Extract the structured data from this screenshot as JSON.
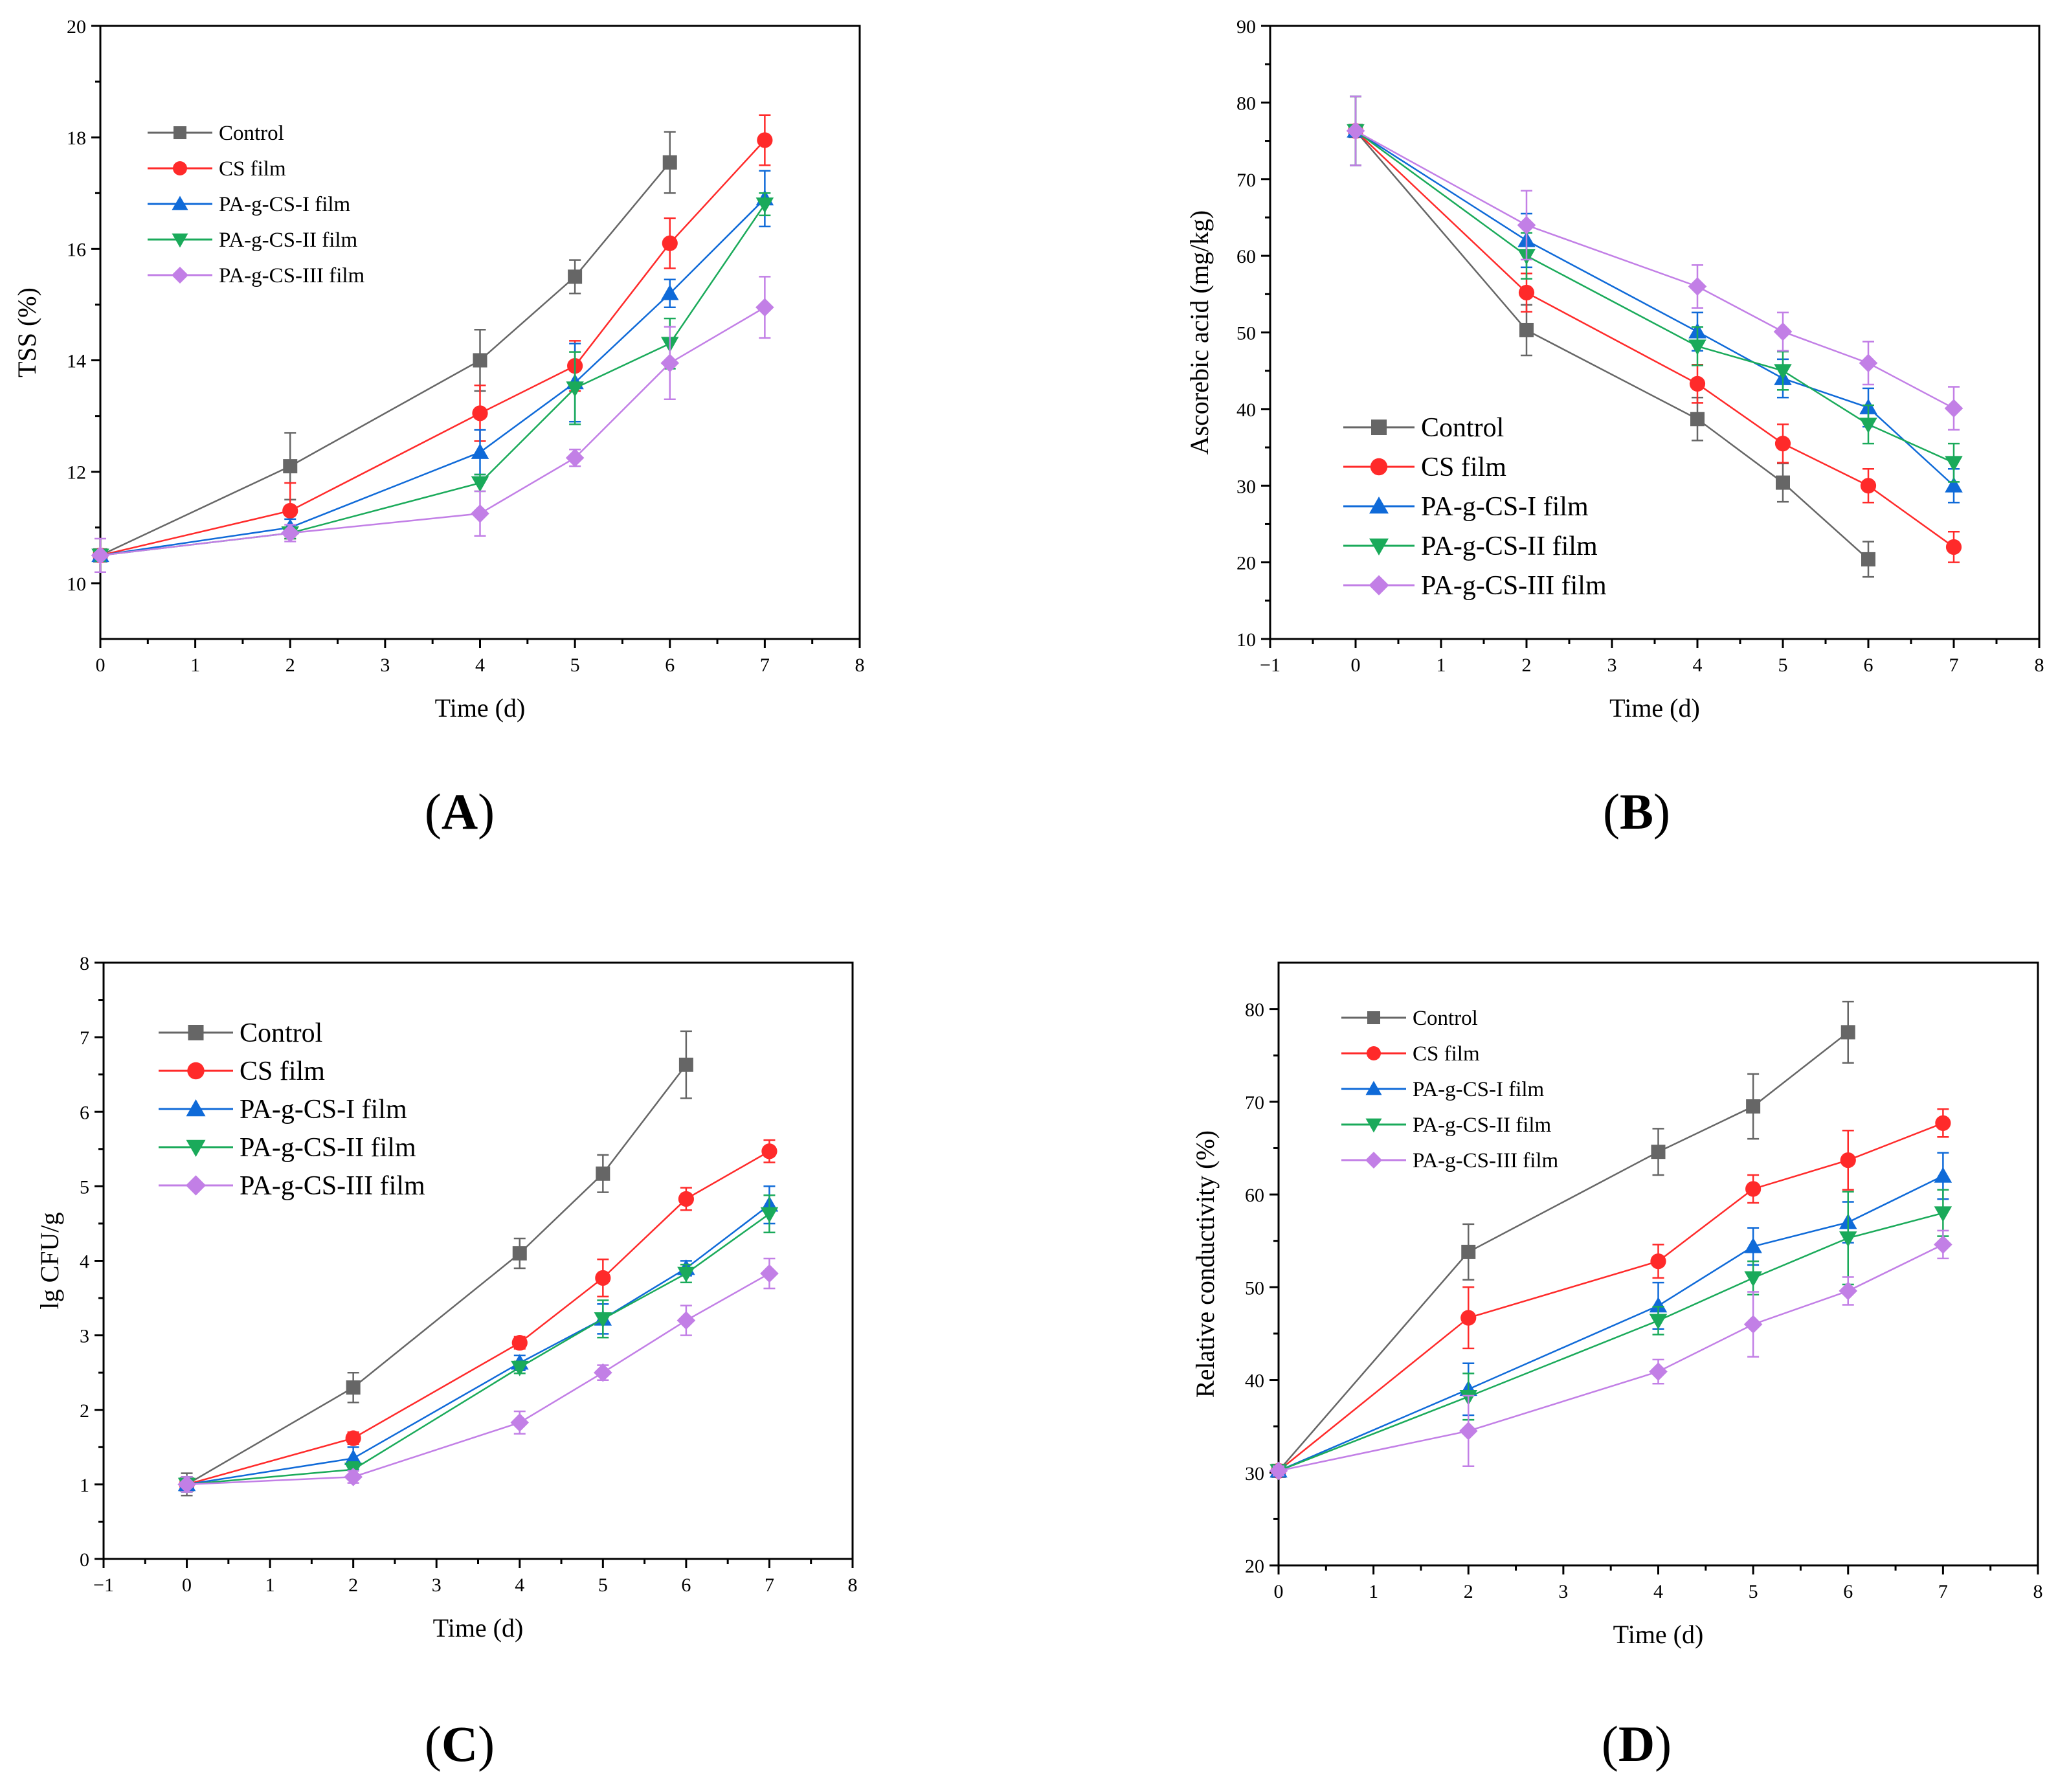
{
  "chart_data": [
    {
      "id": "A",
      "type": "line",
      "panel_label": "A",
      "xlabel": "Time (d)",
      "ylabel": "TSS (%)",
      "xlim": [
        0,
        8
      ],
      "ylim": [
        9,
        20
      ],
      "xticks": [
        0,
        1,
        2,
        3,
        4,
        5,
        6,
        7,
        8
      ],
      "yticks": [
        10,
        12,
        14,
        16,
        18,
        20
      ],
      "legend_position": "top-left",
      "series": [
        {
          "name": "Control",
          "color": "#666666",
          "marker": "square",
          "x": [
            0,
            2,
            4,
            5,
            6
          ],
          "values": [
            10.5,
            12.1,
            14.0,
            15.5,
            17.55
          ],
          "err": [
            0.1,
            0.6,
            0.55,
            0.3,
            0.55
          ]
        },
        {
          "name": "CS film",
          "color": "#ff2a2a",
          "marker": "circle",
          "x": [
            0,
            2,
            4,
            5,
            6,
            7
          ],
          "values": [
            10.5,
            11.3,
            13.05,
            13.9,
            16.1,
            17.95
          ],
          "err": [
            0.1,
            0.5,
            0.5,
            0.45,
            0.45,
            0.45
          ]
        },
        {
          "name": "PA-g-CS-I film",
          "color": "#0f6ad8",
          "marker": "triangle-up",
          "x": [
            0,
            2,
            4,
            5,
            6,
            7
          ],
          "values": [
            10.5,
            11.0,
            12.35,
            13.6,
            15.2,
            16.9
          ],
          "err": [
            0.1,
            0.15,
            0.4,
            0.7,
            0.25,
            0.5
          ]
        },
        {
          "name": "PA-g-CS-II film",
          "color": "#1aaa5a",
          "marker": "triangle-down",
          "x": [
            0,
            2,
            4,
            5,
            6,
            7
          ],
          "values": [
            10.5,
            10.9,
            11.8,
            13.5,
            14.3,
            16.8
          ],
          "err": [
            0.1,
            0.1,
            0.15,
            0.65,
            0.45,
            0.2
          ]
        },
        {
          "name": "PA-g-CS-III film",
          "color": "#c27fe6",
          "marker": "diamond",
          "x": [
            0,
            2,
            4,
            5,
            6,
            7
          ],
          "values": [
            10.5,
            10.9,
            11.25,
            12.25,
            13.95,
            14.95
          ],
          "err": [
            0.3,
            0.15,
            0.4,
            0.15,
            0.65,
            0.55
          ]
        }
      ]
    },
    {
      "id": "B",
      "type": "line",
      "panel_label": "B",
      "xlabel": "Time (d)",
      "ylabel": "Ascorebic acid (mg/kg)",
      "xlim": [
        -1,
        8
      ],
      "ylim": [
        10,
        90
      ],
      "xticks": [
        -1,
        0,
        1,
        2,
        3,
        4,
        5,
        6,
        7,
        8
      ],
      "xtick_labels": [
        "−1",
        "0",
        "1",
        "2",
        "3",
        "4",
        "5",
        "6",
        "7",
        "8"
      ],
      "yticks": [
        10,
        20,
        30,
        40,
        50,
        60,
        70,
        80,
        90
      ],
      "legend_position": "bottom-left",
      "series": [
        {
          "name": "Control",
          "color": "#666666",
          "marker": "square",
          "x": [
            0,
            2,
            4,
            5,
            6
          ],
          "values": [
            76.3,
            50.3,
            38.7,
            30.4,
            20.4
          ],
          "err": [
            4.5,
            3.3,
            2.8,
            2.5,
            2.3
          ]
        },
        {
          "name": "CS film",
          "color": "#ff2a2a",
          "marker": "circle",
          "x": [
            0,
            2,
            4,
            5,
            6,
            7
          ],
          "values": [
            76.3,
            55.2,
            43.3,
            35.5,
            30.0,
            22.0
          ],
          "err": [
            4.5,
            2.5,
            2.5,
            2.5,
            2.2,
            2.0
          ]
        },
        {
          "name": "PA-g-CS-I film",
          "color": "#0f6ad8",
          "marker": "triangle-up",
          "x": [
            0,
            2,
            4,
            5,
            6,
            7
          ],
          "values": [
            76.3,
            62.0,
            50.1,
            44.0,
            40.2,
            30.0
          ],
          "err": [
            4.5,
            3.5,
            2.5,
            2.5,
            2.5,
            2.2
          ]
        },
        {
          "name": "PA-g-CS-II film",
          "color": "#1aaa5a",
          "marker": "triangle-down",
          "x": [
            0,
            2,
            4,
            5,
            6,
            7
          ],
          "values": [
            76.3,
            60.0,
            48.2,
            45.0,
            38.0,
            33.0
          ],
          "err": [
            4.5,
            3.0,
            2.5,
            2.5,
            2.5,
            2.5
          ]
        },
        {
          "name": "PA-g-CS-III film",
          "color": "#c27fe6",
          "marker": "diamond",
          "x": [
            0,
            2,
            4,
            5,
            6,
            7
          ],
          "values": [
            76.3,
            64.0,
            56.0,
            50.1,
            46.0,
            40.1
          ],
          "err": [
            4.5,
            4.5,
            2.8,
            2.5,
            2.8,
            2.8
          ]
        }
      ]
    },
    {
      "id": "C",
      "type": "line",
      "panel_label": "C",
      "xlabel": "Time (d)",
      "ylabel": "lg CFU/g",
      "xlim": [
        -1,
        8
      ],
      "ylim": [
        0,
        8
      ],
      "xticks": [
        -1,
        0,
        1,
        2,
        3,
        4,
        5,
        6,
        7,
        8
      ],
      "xtick_labels": [
        "−1",
        "0",
        "1",
        "2",
        "3",
        "4",
        "5",
        "6",
        "7",
        "8"
      ],
      "yticks": [
        0,
        1,
        2,
        3,
        4,
        5,
        6,
        7,
        8
      ],
      "legend_position": "top-left",
      "series": [
        {
          "name": "Control",
          "color": "#666666",
          "marker": "square",
          "x": [
            0,
            2,
            4,
            5,
            6
          ],
          "values": [
            1.0,
            2.3,
            4.1,
            5.17,
            6.63
          ],
          "err": [
            0.15,
            0.2,
            0.2,
            0.25,
            0.45
          ]
        },
        {
          "name": "CS film",
          "color": "#ff2a2a",
          "marker": "circle",
          "x": [
            0,
            2,
            4,
            5,
            6,
            7
          ],
          "values": [
            1.0,
            1.62,
            2.9,
            3.77,
            4.83,
            5.47
          ],
          "err": [
            0.1,
            0.08,
            0.08,
            0.25,
            0.15,
            0.15
          ]
        },
        {
          "name": "PA-g-CS-I film",
          "color": "#0f6ad8",
          "marker": "triangle-up",
          "x": [
            0,
            2,
            4,
            5,
            6,
            7
          ],
          "values": [
            1.0,
            1.35,
            2.63,
            3.22,
            3.9,
            4.75
          ],
          "err": [
            0.1,
            0.15,
            0.1,
            0.2,
            0.1,
            0.25
          ]
        },
        {
          "name": "PA-g-CS-II film",
          "color": "#1aaa5a",
          "marker": "triangle-down",
          "x": [
            0,
            2,
            4,
            5,
            6,
            7
          ],
          "values": [
            1.0,
            1.2,
            2.57,
            3.22,
            3.83,
            4.63
          ],
          "err": [
            0.1,
            0.1,
            0.08,
            0.25,
            0.12,
            0.25
          ]
        },
        {
          "name": "PA-g-CS-III film",
          "color": "#c27fe6",
          "marker": "diamond",
          "x": [
            0,
            2,
            4,
            5,
            6,
            7
          ],
          "values": [
            1.0,
            1.1,
            1.83,
            2.5,
            3.2,
            3.83
          ],
          "err": [
            0.1,
            0.08,
            0.15,
            0.1,
            0.2,
            0.2
          ]
        }
      ]
    },
    {
      "id": "D",
      "type": "line",
      "panel_label": "D",
      "xlabel": "Time (d)",
      "ylabel": "Relative conductivity (%)",
      "xlim": [
        0,
        8
      ],
      "ylim": [
        20,
        85
      ],
      "xticks": [
        0,
        1,
        2,
        3,
        4,
        5,
        6,
        7,
        8
      ],
      "yticks": [
        20,
        30,
        40,
        50,
        60,
        70,
        80
      ],
      "legend_position": "top-left",
      "series": [
        {
          "name": "Control",
          "color": "#666666",
          "marker": "square",
          "x": [
            0,
            2,
            4,
            5,
            6
          ],
          "values": [
            30.2,
            53.8,
            64.6,
            69.5,
            77.5
          ],
          "err": [
            0.5,
            3.0,
            2.5,
            3.5,
            3.3
          ]
        },
        {
          "name": "CS film",
          "color": "#ff2a2a",
          "marker": "circle",
          "x": [
            0,
            2,
            4,
            5,
            6,
            7
          ],
          "values": [
            30.2,
            46.7,
            52.8,
            60.6,
            63.7,
            67.7
          ],
          "err": [
            0.5,
            3.3,
            1.8,
            1.5,
            3.2,
            1.5
          ]
        },
        {
          "name": "PA-g-CS-I film",
          "color": "#0f6ad8",
          "marker": "triangle-up",
          "x": [
            0,
            2,
            4,
            5,
            6,
            7
          ],
          "values": [
            30.2,
            39.0,
            48.0,
            54.4,
            57.0,
            62.0
          ],
          "err": [
            0.5,
            2.8,
            2.5,
            2.0,
            2.2,
            2.5
          ]
        },
        {
          "name": "PA-g-CS-II film",
          "color": "#1aaa5a",
          "marker": "triangle-down",
          "x": [
            0,
            2,
            4,
            5,
            6,
            7
          ],
          "values": [
            30.2,
            38.2,
            46.4,
            51.0,
            55.3,
            58.0
          ],
          "err": [
            0.5,
            2.5,
            1.5,
            1.8,
            5.0,
            2.5
          ]
        },
        {
          "name": "PA-g-CS-III film",
          "color": "#c27fe6",
          "marker": "diamond",
          "x": [
            0,
            2,
            4,
            5,
            6,
            7
          ],
          "values": [
            30.2,
            34.5,
            40.9,
            46.0,
            49.6,
            54.6
          ],
          "err": [
            0.5,
            3.8,
            1.3,
            3.5,
            1.5,
            1.5
          ]
        }
      ]
    }
  ]
}
